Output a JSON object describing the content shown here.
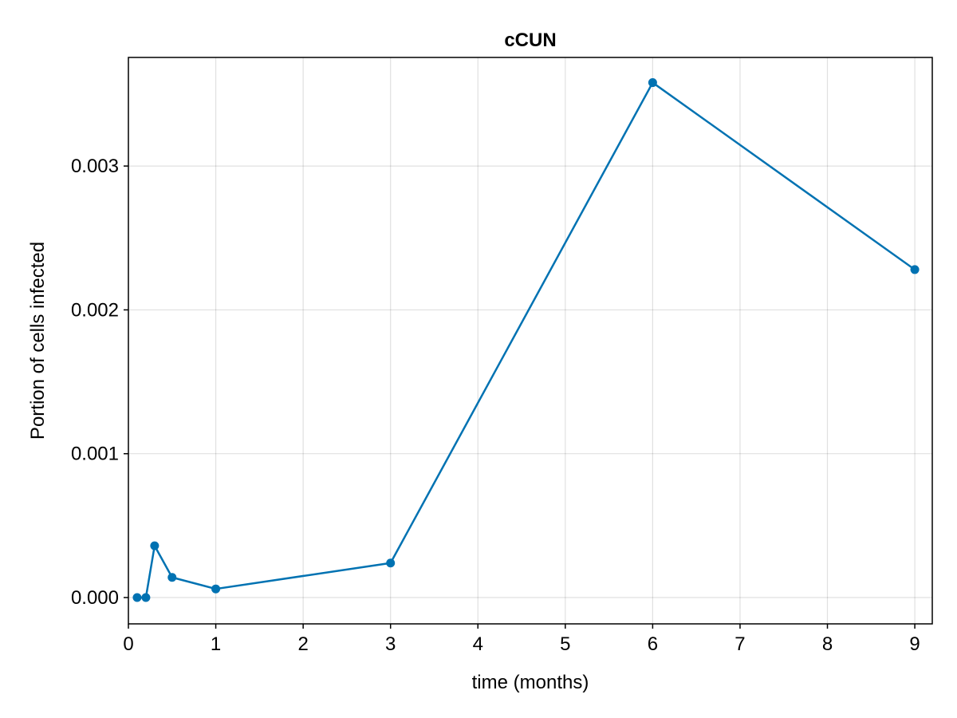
{
  "chart_data": {
    "type": "line",
    "title": "cCUN",
    "xlabel": "time (months)",
    "ylabel": "Portion of cells infected",
    "xlim": [
      0,
      9.2
    ],
    "ylim": [
      -0.000183,
      0.003755
    ],
    "xticks": [
      0,
      1,
      2,
      3,
      4,
      5,
      6,
      7,
      8,
      9
    ],
    "xtick_labels": [
      "0",
      "1",
      "2",
      "3",
      "4",
      "5",
      "6",
      "7",
      "8",
      "9"
    ],
    "yticks": [
      0.0,
      0.001,
      0.002,
      0.003
    ],
    "ytick_labels": [
      "0.000",
      "0.001",
      "0.002",
      "0.003"
    ],
    "grid": true,
    "color": "#0072B2",
    "series": [
      {
        "x": [
          0.1,
          0.2,
          0.3,
          0.5,
          1,
          3,
          6,
          9
        ],
        "y": [
          0.0,
          0.0,
          0.00036,
          0.00014,
          6e-05,
          0.00024,
          0.00358,
          0.00228
        ]
      }
    ]
  }
}
